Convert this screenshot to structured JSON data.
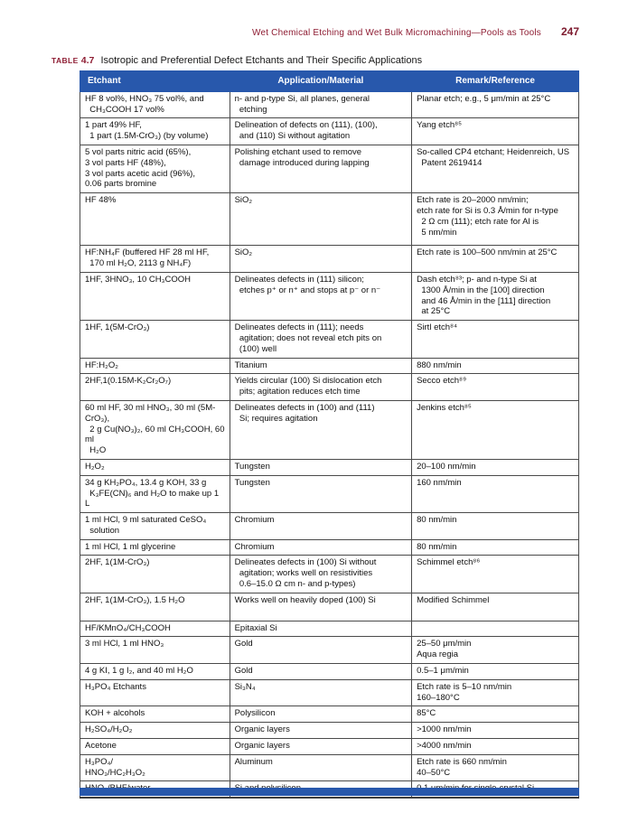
{
  "page": {
    "running_head": "Wet Chemical Etching and Wet Bulk Micromachining—Pools as Tools",
    "page_number": "247"
  },
  "caption": {
    "label": "TABLE",
    "number": "4.7",
    "title": "Isotropic and Preferential Defect Etchants and Their Specific Applications"
  },
  "colors": {
    "header_bg": "#2858ac",
    "accent_maroon": "#8e1d33"
  },
  "table": {
    "headers": [
      "Etchant",
      "Application/Material",
      "Remark/Reference"
    ],
    "rows": [
      {
        "etchant": "HF 8 vol%, HNO₃ 75 vol%, and\n  CH₃COOH 17 vol%",
        "application": "n- and p-type Si, all planes, general\n  etching",
        "remark": "Planar etch; e.g., 5 μm/min at 25°C"
      },
      {
        "etchant": "1 part 49% HF,\n  1 part (1.5M-CrO₃) (by volume)",
        "application": "Delineation of defects on (111), (100),\n  and (110) Si without agitation",
        "remark": "Yang etch⁸⁵"
      },
      {
        "etchant": "5 vol parts nitric acid (65%),\n3 vol parts HF (48%),\n3 vol parts acetic acid (96%),\n0.06 parts bromine",
        "application": "Polishing etchant used to remove\n  damage introduced during lapping",
        "remark": "So-called CP4 etchant; Heidenreich, US\n  Patent 2619414"
      },
      {
        "etchant": "HF 48%",
        "application": "SiO₂",
        "remark": "Etch rate is 20–2000 nm/min;\netch rate for Si is 0.3 Å/min for n-type\n  2 Ω cm (111); etch rate for Al is\n  5 nm/min"
      },
      {
        "etchant": "HF:NH₄F (buffered HF 28 ml HF,\n  170 ml H₂O, 2113 g NH₄F)",
        "application": "SiO₂",
        "remark": "Etch rate is 100–500 nm/min at 25°C"
      },
      {
        "etchant": "1HF, 3HNO₃, 10 CH₃COOH",
        "application": "Delineates defects in (111) silicon;\n  etches p⁺ or n⁺ and stops at p⁻ or n⁻",
        "remark": "Dash etch⁸³; p- and n-type Si at\n  1300 Å/min in the [100] direction\n  and 46 Å/min in the [111] direction\n  at 25°C"
      },
      {
        "etchant": "1HF, 1(5M-CrO₃)",
        "application": "Delineates defects in (111); needs\n  agitation; does not reveal etch pits on\n  (100) well",
        "remark": "Sirtl etch⁸⁴"
      },
      {
        "etchant": "HF:H₂O₂",
        "application": "Titanium",
        "remark": "880 nm/min"
      },
      {
        "etchant": "2HF,1(0.15M-K₂Cr₂O₇)",
        "application": "Yields circular (100) Si dislocation etch\n  pits; agitation reduces etch time",
        "remark": "Secco etch⁸⁹"
      },
      {
        "etchant": "60 ml HF, 30 ml HNO₃, 30 ml (5M-CrO₃),\n  2 g Cu(NO₃)₂, 60 ml CH₃COOH, 60 ml\n  H₂O",
        "application": "Delineates defects in (100) and (111)\n  Si; requires agitation",
        "remark": "Jenkins etch⁸⁵"
      },
      {
        "etchant": "H₂O₂",
        "application": "Tungsten",
        "remark": "20–100 nm/min"
      },
      {
        "etchant": "34 g KH₂PO₄, 13.4 g KOH, 33 g\n  K₃FE(CN)₆ and H₂O to make up 1 L",
        "application": "Tungsten",
        "remark": "160 nm/min"
      },
      {
        "etchant": "1 ml HCl, 9 ml saturated CeSO₄\n  solution",
        "application": "Chromium",
        "remark": "80 nm/min"
      },
      {
        "etchant": "1 ml HCl, 1 ml glycerine",
        "application": "Chromium",
        "remark": "80 nm/min"
      },
      {
        "etchant": "2HF, 1(1M-CrO₃)",
        "application": "Delineates defects in (100) Si without\n  agitation; works well on resistivities\n  0.6–15.0 Ω cm n- and p-types)",
        "remark": "Schimmel etch⁸⁶"
      },
      {
        "etchant": "2HF, 1(1M-CrO₃), 1.5 H₂O",
        "application": "Works well on heavily doped (100) Si",
        "remark": "Modified Schimmel"
      },
      {
        "etchant": "HF/KMnO₄/CH₃COOH",
        "application": "Epitaxial Si",
        "remark": ""
      },
      {
        "etchant": "3 ml HCl, 1 ml HNO₃",
        "application": "Gold",
        "remark": "25–50 μm/min\nAqua regia"
      },
      {
        "etchant": "4 g KI, 1 g I₂, and 40 ml H₂O",
        "application": "Gold",
        "remark": "0.5–1 μm/min"
      },
      {
        "etchant": "H₃PO₄ Etchants",
        "application": "Si₃N₄",
        "remark": "Etch rate is 5–10 nm/min\n160–180°C"
      },
      {
        "etchant": "KOH + alcohols",
        "application": "Polysilicon",
        "remark": "85°C"
      },
      {
        "etchant": "H₂SO₄/H₂O₂",
        "application": "Organic layers",
        "remark": ">1000 nm/min"
      },
      {
        "etchant": "Acetone",
        "application": "Organic layers",
        "remark": ">4000 nm/min"
      },
      {
        "etchant": "H₃PO₄/\nHNO₃/HC₂H₃O₂",
        "application": "Aluminum",
        "remark": "Etch rate is 660 nm/min\n40–50°C"
      },
      {
        "etchant": "HNO₃/BHF/water",
        "application": "Si and polysilicon",
        "remark": "0.1 μm/min for single-crystal Si"
      }
    ]
  }
}
